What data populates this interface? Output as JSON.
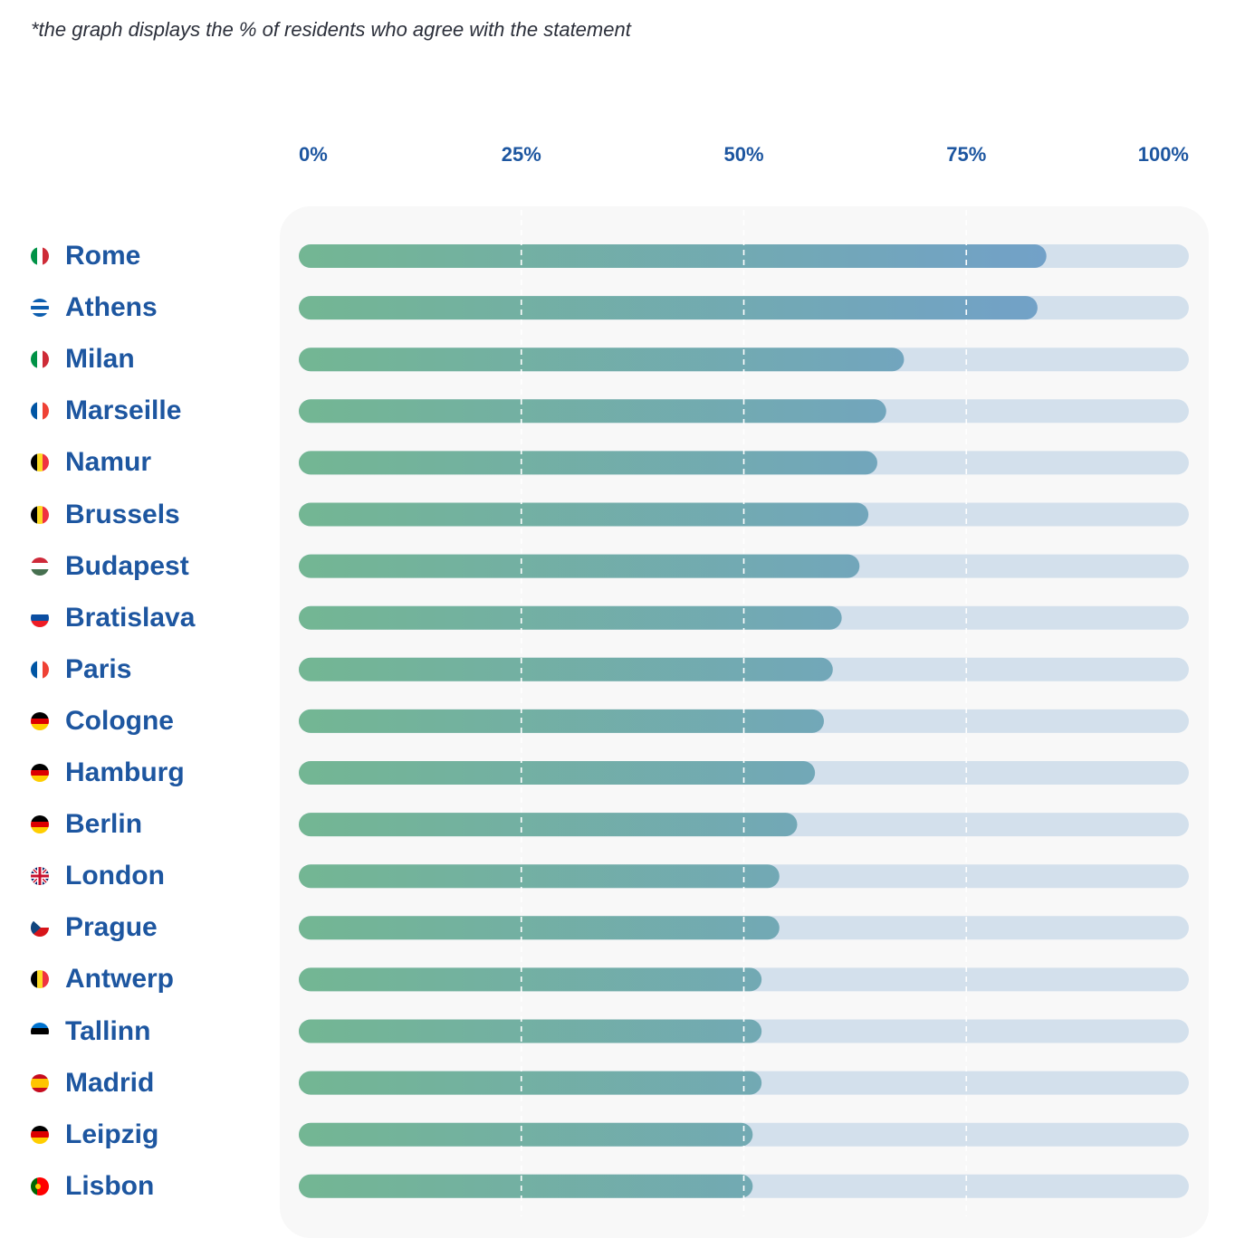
{
  "footnote": "*the graph displays the % of residents who agree with the statement",
  "colors": {
    "track": "#d3e0ec",
    "gradient_start": "#73b693",
    "gradient_end": "#729dd2",
    "text": "#1d56a0",
    "panel": "#f8f8f8",
    "gridline": "#ffffff"
  },
  "chart_data": {
    "type": "bar",
    "orientation": "horizontal",
    "title": "",
    "xlabel": "",
    "ylabel": "",
    "xlim": [
      0,
      100
    ],
    "unit": "%",
    "ticks": [
      "0%",
      "25%",
      "50%",
      "75%",
      "100%"
    ],
    "gridlines": [
      25,
      50,
      75
    ],
    "categories": [
      "Rome",
      "Athens",
      "Milan",
      "Marseille",
      "Namur",
      "Brussels",
      "Budapest",
      "Bratislava",
      "Paris",
      "Cologne",
      "Hamburg",
      "Berlin",
      "London",
      "Prague",
      "Antwerp",
      "Tallinn",
      "Madrid",
      "Leipzig",
      "Lisbon"
    ],
    "flags": [
      "italy-flag-icon",
      "greece-flag-icon",
      "italy-flag-icon",
      "france-flag-icon",
      "belgium-flag-icon",
      "belgium-flag-icon",
      "hungary-flag-icon",
      "slovakia-flag-icon",
      "france-flag-icon",
      "germany-flag-icon",
      "germany-flag-icon",
      "germany-flag-icon",
      "uk-flag-icon",
      "czech-flag-icon",
      "belgium-flag-icon",
      "estonia-flag-icon",
      "spain-flag-icon",
      "germany-flag-icon",
      "portugal-flag-icon"
    ],
    "values": [
      84,
      83,
      68,
      66,
      65,
      64,
      63,
      61,
      60,
      59,
      58,
      56,
      54,
      54,
      52,
      52,
      52,
      51,
      51
    ]
  }
}
